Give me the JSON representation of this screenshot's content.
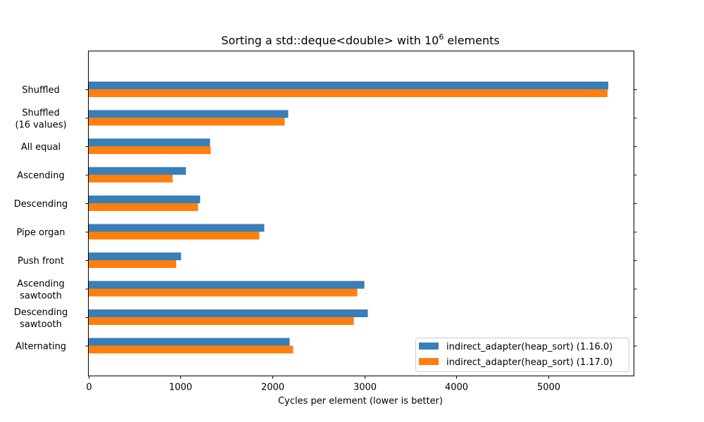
{
  "chart_data": {
    "type": "bar",
    "orientation": "horizontal",
    "title_main": "Sorting a std::deque<double> with 10",
    "title_sup": "6",
    "title_end": " elements",
    "xlabel": "Cycles per element (lower is better)",
    "ylabel": "",
    "xlim": [
      0,
      5930
    ],
    "xticks": [
      0,
      1000,
      2000,
      3000,
      4000,
      5000
    ],
    "xtick_labels": [
      "0",
      "1000",
      "2000",
      "3000",
      "4000",
      "5000"
    ],
    "grid": false,
    "legend_position": "lower-right",
    "categories": [
      [
        "Shuffled"
      ],
      [
        "Shuffled",
        "(16 values)"
      ],
      [
        "All equal"
      ],
      [
        "Ascending"
      ],
      [
        "Descending"
      ],
      [
        "Pipe organ"
      ],
      [
        "Push front"
      ],
      [
        "Ascending",
        "sawtooth"
      ],
      [
        "Descending",
        "sawtooth"
      ],
      [
        "Alternating"
      ]
    ],
    "series": [
      {
        "name": "indirect_adapter(heap_sort) (1.16.0)",
        "color": "#3a7eb8",
        "values": [
          5651,
          2172,
          1322,
          1061,
          1215,
          1912,
          1008,
          3000,
          3038,
          2188
        ]
      },
      {
        "name": "indirect_adapter(heap_sort) (1.17.0)",
        "color": "#ff7f0e",
        "values": [
          5643,
          2134,
          1330,
          916,
          1192,
          1858,
          954,
          2923,
          2885,
          2226
        ]
      }
    ]
  }
}
